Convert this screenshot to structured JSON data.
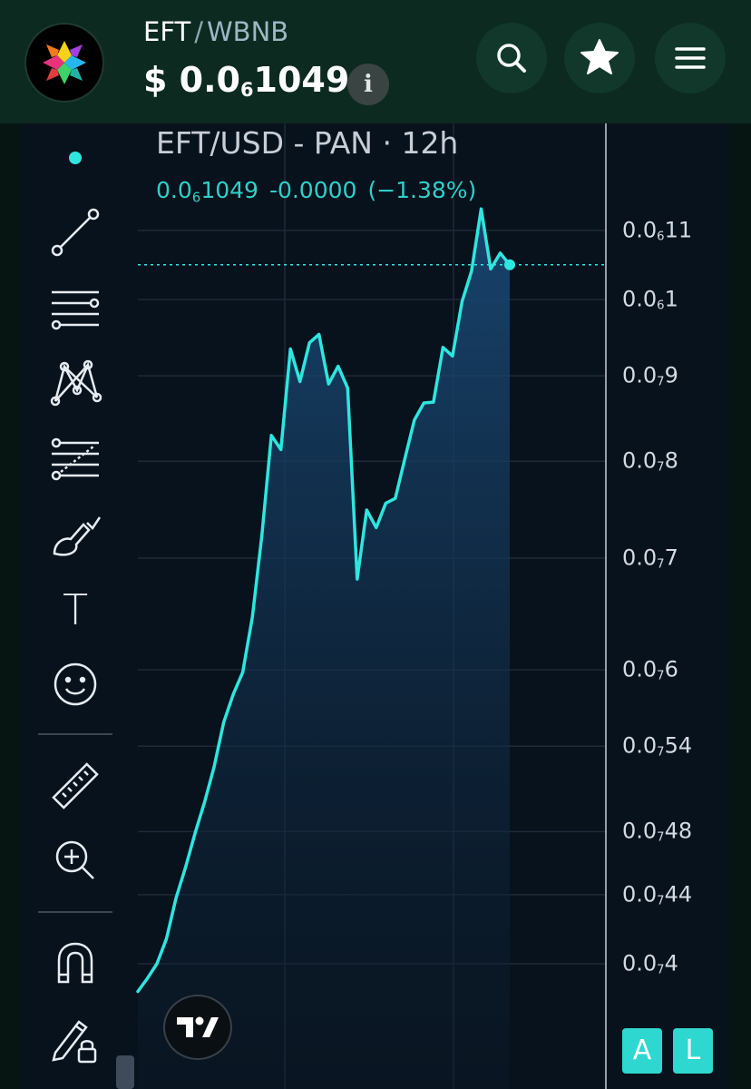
{
  "header": {
    "base_symbol": "EFT",
    "separator": "/",
    "quote_symbol": "WBNB",
    "price_prefix": "$ 0.0",
    "price_sub": "6",
    "price_rest": "1049",
    "info_label": "i",
    "icons": [
      "search-icon",
      "star-icon",
      "menu-icon",
      "info-icon"
    ]
  },
  "chart": {
    "title": "EFT/USD - PAN · 12h",
    "last_prefix": "0.0",
    "last_sub": "6",
    "last_rest": "1049",
    "change": "-0.0000",
    "change_pct": "(−1.38%)",
    "line_color": "#2ee6e0",
    "accent_color": "#2fd0c9"
  },
  "chart_data": {
    "type": "area",
    "title": "EFT/USD - PAN · 12h",
    "y_scale": "log",
    "y_tick_labels": [
      {
        "prefix": "0.0",
        "sub": "6",
        "rest": "11",
        "value": 1.1e-07
      },
      {
        "prefix": "0.0",
        "sub": "6",
        "rest": "1",
        "value": 1e-07
      },
      {
        "prefix": "0.0",
        "sub": "7",
        "rest": "9",
        "value": 9e-08
      },
      {
        "prefix": "0.0",
        "sub": "7",
        "rest": "8",
        "value": 8e-08
      },
      {
        "prefix": "0.0",
        "sub": "7",
        "rest": "7",
        "value": 7e-08
      },
      {
        "prefix": "0.0",
        "sub": "7",
        "rest": "6",
        "value": 6e-08
      },
      {
        "prefix": "0.0",
        "sub": "7",
        "rest": "54",
        "value": 5.4e-08
      },
      {
        "prefix": "0.0",
        "sub": "7",
        "rest": "48",
        "value": 4.8e-08
      },
      {
        "prefix": "0.0",
        "sub": "7",
        "rest": "44",
        "value": 4.4e-08
      },
      {
        "prefix": "0.0",
        "sub": "7",
        "rest": "4",
        "value": 4e-08
      }
    ],
    "series": [
      {
        "values": [
          3.85e-08,
          3.92e-08,
          4e-08,
          4.14e-08,
          4.38e-08,
          4.57e-08,
          4.79e-08,
          5e-08,
          5.25e-08,
          5.58e-08,
          5.8e-08,
          5.98e-08,
          6.45e-08,
          7.22e-08,
          8.29e-08,
          8.13e-08,
          9.34e-08,
          8.93e-08,
          9.42e-08,
          9.53e-08,
          8.9e-08,
          9.12e-08,
          8.85e-08,
          6.8e-08,
          7.48e-08,
          7.3e-08,
          7.55e-08,
          7.6e-08,
          8.03e-08,
          8.47e-08,
          8.67e-08,
          8.68e-08,
          9.36e-08,
          9.25e-08,
          9.97e-08,
          1.04e-07,
          1.133e-07,
          1.043e-07,
          1.066e-07,
          1.049e-07
        ]
      }
    ],
    "last_value": 1.049e-07,
    "grid": true
  },
  "toolbar": {
    "tools": [
      "cursor-dot-icon",
      "trend-line-icon",
      "horizontal-lines-icon",
      "pattern-icon",
      "fib-levels-icon",
      "brush-icon",
      "text-tool-icon",
      "emoji-icon",
      "ruler-icon",
      "zoom-in-icon",
      "magnet-icon",
      "lock-drawing-icon"
    ],
    "text_tool_label": "T"
  },
  "scale_buttons": {
    "auto_label": "A",
    "log_label": "L"
  }
}
